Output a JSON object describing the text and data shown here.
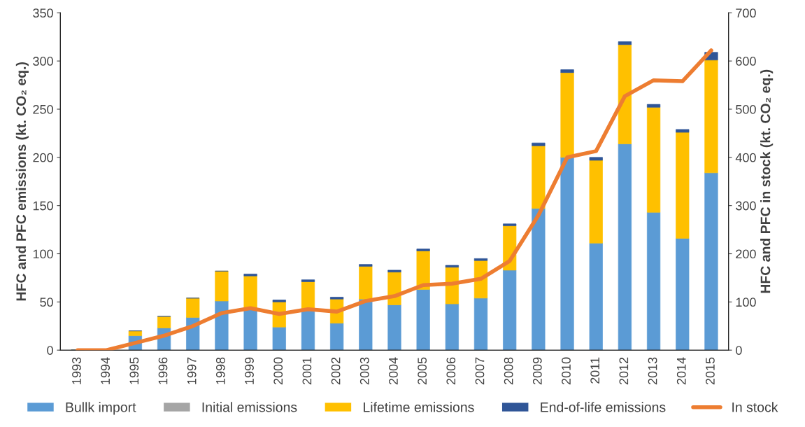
{
  "chart_data": {
    "type": "bar",
    "stacked": true,
    "categories": [
      "1993",
      "1994",
      "1995",
      "1996",
      "1997",
      "1998",
      "1999",
      "2000",
      "2001",
      "2002",
      "2003",
      "2004",
      "2005",
      "2006",
      "2007",
      "2008",
      "2009",
      "2010",
      "2011",
      "2012",
      "2013",
      "2014",
      "2015"
    ],
    "ylabel": "HFC and PFC emissions (kt. CO₂ eq.)",
    "y2label": "HFC and PFC in stock (kt. CO₂ eq.)",
    "series": [
      {
        "name": "Bullk import",
        "color": "#5b9bd5",
        "values": [
          0,
          0,
          15,
          23,
          34,
          51,
          42,
          24,
          42,
          28,
          53,
          47,
          63,
          48,
          54,
          83,
          147,
          200,
          111,
          214,
          143,
          116,
          184
        ]
      },
      {
        "name": "Initial emissions",
        "color": "#a5a5a5",
        "values": [
          null,
          null,
          null,
          null,
          null,
          null,
          null,
          null,
          null,
          null,
          null,
          null,
          null,
          null,
          null,
          null,
          null,
          null,
          null,
          null,
          null,
          null,
          null
        ]
      },
      {
        "name": "Lifetime emissions",
        "color": "#ffc000",
        "values": [
          0,
          0,
          5,
          12,
          20,
          31,
          35,
          26,
          29,
          25,
          34,
          34,
          40,
          38,
          39,
          46,
          65,
          88,
          86,
          103,
          109,
          110,
          117
        ]
      },
      {
        "name": "End-of-life emissions",
        "color": "#2f5597",
        "values": [
          0,
          0,
          0,
          0,
          0,
          0,
          2,
          2,
          2,
          2,
          2,
          2,
          2,
          2,
          2,
          2,
          3,
          3,
          3,
          3,
          3,
          3,
          8
        ]
      },
      {
        "name": "In stock",
        "type": "line",
        "axis": "y2",
        "color": "#ed7d31",
        "values": [
          0,
          0,
          15,
          30,
          50,
          77,
          87,
          75,
          85,
          80,
          102,
          112,
          135,
          138,
          148,
          185,
          280,
          400,
          413,
          527,
          560,
          558,
          622
        ]
      }
    ],
    "ylim": [
      0,
      350
    ],
    "yticks": [
      0,
      50,
      100,
      150,
      200,
      250,
      300,
      350
    ],
    "y2lim": [
      0,
      700
    ],
    "y2ticks": [
      0,
      100,
      200,
      300,
      400,
      500,
      600,
      700
    ],
    "grid": false,
    "legend": "bottom"
  }
}
